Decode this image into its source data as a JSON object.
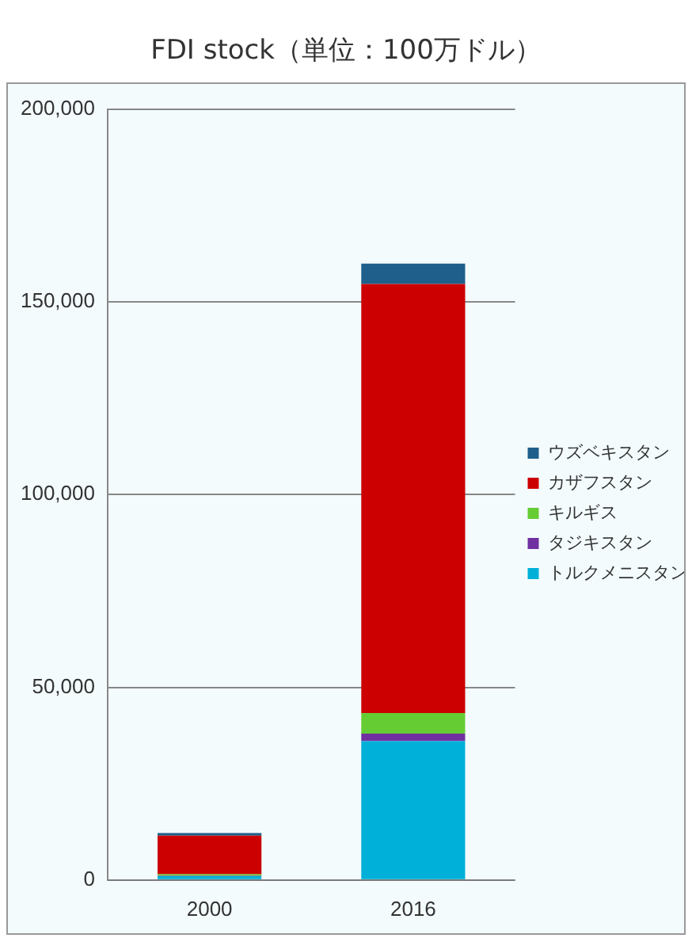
{
  "chart_data": {
    "type": "bar",
    "title": "FDI stock（単位：100万ドル）",
    "categories": [
      "2000",
      "2016"
    ],
    "stacked": true,
    "series": [
      {
        "name": "トルクメニスタン",
        "color": "#00b0d8",
        "values": [
          1000,
          36000
        ]
      },
      {
        "name": "タジキスタン",
        "color": "#7030a0",
        "values": [
          100,
          2000
        ]
      },
      {
        "name": "キルギス",
        "color": "#66cc33",
        "values": [
          400,
          5300
        ]
      },
      {
        "name": "カザフスタン",
        "color": "#cc0000",
        "values": [
          10000,
          111300
        ]
      },
      {
        "name": "ウズベキスタン",
        "color": "#1f5f8b",
        "values": [
          700,
          5300
        ]
      }
    ],
    "ylim": [
      0,
      200000
    ],
    "yticks": [
      {
        "value": 0,
        "label": "0"
      },
      {
        "value": 50000,
        "label": "50,000"
      },
      {
        "value": 100000,
        "label": "100,000"
      },
      {
        "value": 150000,
        "label": "150,000"
      },
      {
        "value": 200000,
        "label": "200,000"
      }
    ],
    "grid": "y",
    "legend": "right"
  }
}
